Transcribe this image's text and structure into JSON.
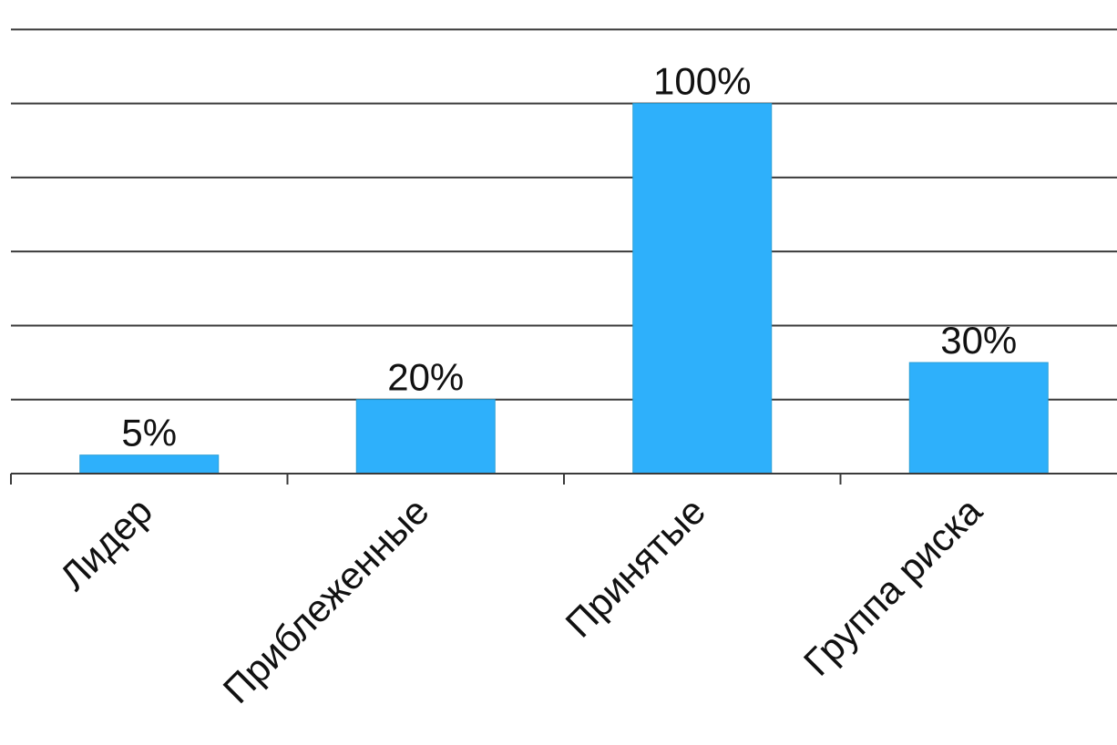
{
  "chart_data": {
    "type": "bar",
    "categories": [
      "Лидер",
      "Приблеженные",
      "Принятые",
      "Группа риска"
    ],
    "values": [
      5,
      20,
      100,
      30
    ],
    "data_labels": [
      "5%",
      "20%",
      "100%",
      "30%"
    ],
    "ylim": [
      0,
      125
    ],
    "y_gridline_step": 20,
    "grid": true,
    "legend": "none",
    "bar_color": "#2eb0fb",
    "gridline_color": "#3a3a3a"
  }
}
